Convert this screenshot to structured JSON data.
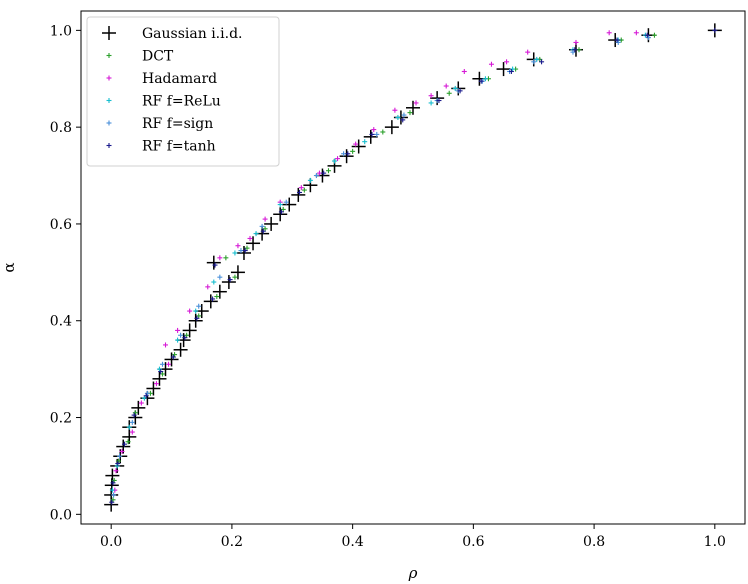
{
  "chart_data": {
    "type": "scatter",
    "title": "",
    "xlabel": "ρ",
    "ylabel": "α",
    "xlim": [
      -0.05,
      1.05
    ],
    "ylim": [
      -0.02,
      1.04
    ],
    "xticks": [
      0.0,
      0.2,
      0.4,
      0.6,
      0.8,
      1.0
    ],
    "yticks": [
      0.0,
      0.2,
      0.4,
      0.6,
      0.8,
      1.0
    ],
    "xtick_labels": [
      "0.0",
      "0.2",
      "0.4",
      "0.6",
      "0.8",
      "1.0"
    ],
    "ytick_labels": [
      "0.0",
      "0.2",
      "0.4",
      "0.6",
      "0.8",
      "1.0"
    ],
    "grid": false,
    "legend_position": "top-left",
    "series": [
      {
        "name": "Gaussian i.i.d.",
        "color": "#000000",
        "marker": "plus",
        "points": [
          [
            0.0,
            0.02
          ],
          [
            0.0,
            0.04
          ],
          [
            0.001,
            0.06
          ],
          [
            0.002,
            0.08
          ],
          [
            0.01,
            0.1
          ],
          [
            0.015,
            0.12
          ],
          [
            0.02,
            0.14
          ],
          [
            0.03,
            0.16
          ],
          [
            0.03,
            0.18
          ],
          [
            0.04,
            0.2
          ],
          [
            0.045,
            0.22
          ],
          [
            0.06,
            0.24
          ],
          [
            0.07,
            0.26
          ],
          [
            0.08,
            0.28
          ],
          [
            0.09,
            0.3
          ],
          [
            0.1,
            0.32
          ],
          [
            0.115,
            0.34
          ],
          [
            0.12,
            0.36
          ],
          [
            0.13,
            0.38
          ],
          [
            0.14,
            0.4
          ],
          [
            0.15,
            0.42
          ],
          [
            0.165,
            0.44
          ],
          [
            0.18,
            0.46
          ],
          [
            0.195,
            0.48
          ],
          [
            0.21,
            0.5
          ],
          [
            0.17,
            0.52
          ],
          [
            0.22,
            0.54
          ],
          [
            0.235,
            0.56
          ],
          [
            0.25,
            0.58
          ],
          [
            0.265,
            0.6
          ],
          [
            0.28,
            0.62
          ],
          [
            0.295,
            0.64
          ],
          [
            0.31,
            0.66
          ],
          [
            0.33,
            0.68
          ],
          [
            0.35,
            0.7
          ],
          [
            0.37,
            0.72
          ],
          [
            0.39,
            0.74
          ],
          [
            0.41,
            0.76
          ],
          [
            0.43,
            0.78
          ],
          [
            0.465,
            0.8
          ],
          [
            0.48,
            0.82
          ],
          [
            0.5,
            0.84
          ],
          [
            0.54,
            0.86
          ],
          [
            0.575,
            0.88
          ],
          [
            0.61,
            0.9
          ],
          [
            0.65,
            0.92
          ],
          [
            0.7,
            0.94
          ],
          [
            0.77,
            0.96
          ],
          [
            0.835,
            0.98
          ],
          [
            0.89,
            0.99
          ],
          [
            1.0,
            1.0
          ]
        ]
      },
      {
        "name": "DCT",
        "color": "#2ca02c",
        "marker": "dot",
        "points": [
          [
            0.003,
            0.03
          ],
          [
            0.005,
            0.07
          ],
          [
            0.012,
            0.11
          ],
          [
            0.028,
            0.15
          ],
          [
            0.04,
            0.21
          ],
          [
            0.065,
            0.25
          ],
          [
            0.085,
            0.29
          ],
          [
            0.105,
            0.33
          ],
          [
            0.125,
            0.37
          ],
          [
            0.145,
            0.41
          ],
          [
            0.175,
            0.45
          ],
          [
            0.205,
            0.49
          ],
          [
            0.19,
            0.53
          ],
          [
            0.225,
            0.55
          ],
          [
            0.255,
            0.59
          ],
          [
            0.285,
            0.63
          ],
          [
            0.32,
            0.67
          ],
          [
            0.36,
            0.71
          ],
          [
            0.4,
            0.75
          ],
          [
            0.45,
            0.79
          ],
          [
            0.495,
            0.83
          ],
          [
            0.56,
            0.87
          ],
          [
            0.625,
            0.9
          ],
          [
            0.67,
            0.92
          ],
          [
            0.71,
            0.94
          ],
          [
            0.775,
            0.96
          ],
          [
            0.845,
            0.98
          ],
          [
            0.9,
            0.99
          ]
        ]
      },
      {
        "name": "Hadamard",
        "color": "#d61ad6",
        "marker": "dot",
        "points": [
          [
            0.006,
            0.05
          ],
          [
            0.008,
            0.09
          ],
          [
            0.018,
            0.13
          ],
          [
            0.035,
            0.17
          ],
          [
            0.05,
            0.23
          ],
          [
            0.075,
            0.27
          ],
          [
            0.095,
            0.31
          ],
          [
            0.09,
            0.35
          ],
          [
            0.11,
            0.38
          ],
          [
            0.13,
            0.42
          ],
          [
            0.16,
            0.47
          ],
          [
            0.18,
            0.53
          ],
          [
            0.21,
            0.555
          ],
          [
            0.23,
            0.57
          ],
          [
            0.255,
            0.61
          ],
          [
            0.28,
            0.645
          ],
          [
            0.315,
            0.675
          ],
          [
            0.345,
            0.705
          ],
          [
            0.375,
            0.735
          ],
          [
            0.405,
            0.765
          ],
          [
            0.435,
            0.795
          ],
          [
            0.47,
            0.835
          ],
          [
            0.505,
            0.85
          ],
          [
            0.53,
            0.865
          ],
          [
            0.555,
            0.885
          ],
          [
            0.585,
            0.915
          ],
          [
            0.63,
            0.93
          ],
          [
            0.655,
            0.935
          ],
          [
            0.69,
            0.955
          ],
          [
            0.77,
            0.975
          ],
          [
            0.825,
            0.995
          ],
          [
            0.87,
            0.995
          ]
        ]
      },
      {
        "name": "RF f=ReLu",
        "color": "#17becf",
        "marker": "dot",
        "points": [
          [
            0.002,
            0.05
          ],
          [
            0.01,
            0.1
          ],
          [
            0.03,
            0.18
          ],
          [
            0.055,
            0.24
          ],
          [
            0.08,
            0.3
          ],
          [
            0.11,
            0.36
          ],
          [
            0.14,
            0.42
          ],
          [
            0.17,
            0.48
          ],
          [
            0.205,
            0.54
          ],
          [
            0.24,
            0.58
          ],
          [
            0.28,
            0.64
          ],
          [
            0.33,
            0.69
          ],
          [
            0.37,
            0.73
          ],
          [
            0.42,
            0.77
          ],
          [
            0.475,
            0.82
          ],
          [
            0.53,
            0.85
          ],
          [
            0.57,
            0.88
          ],
          [
            0.62,
            0.9
          ],
          [
            0.665,
            0.92
          ],
          [
            0.705,
            0.94
          ],
          [
            0.765,
            0.96
          ],
          [
            0.84,
            0.98
          ],
          [
            0.885,
            0.99
          ]
        ]
      },
      {
        "name": "RF f=sign",
        "color": "#4a90d9",
        "marker": "dot",
        "points": [
          [
            0.004,
            0.04
          ],
          [
            0.014,
            0.12
          ],
          [
            0.035,
            0.19
          ],
          [
            0.06,
            0.25
          ],
          [
            0.085,
            0.31
          ],
          [
            0.115,
            0.37
          ],
          [
            0.145,
            0.43
          ],
          [
            0.18,
            0.49
          ],
          [
            0.215,
            0.545
          ],
          [
            0.25,
            0.595
          ],
          [
            0.29,
            0.645
          ],
          [
            0.34,
            0.7
          ],
          [
            0.385,
            0.745
          ],
          [
            0.44,
            0.785
          ],
          [
            0.485,
            0.825
          ],
          [
            0.54,
            0.855
          ],
          [
            0.575,
            0.875
          ],
          [
            0.615,
            0.895
          ],
          [
            0.66,
            0.915
          ],
          [
            0.7,
            0.935
          ],
          [
            0.765,
            0.955
          ],
          [
            0.84,
            0.975
          ],
          [
            0.89,
            0.985
          ]
        ]
      },
      {
        "name": "RF f=tanh",
        "color": "#1a1a8c",
        "marker": "dot",
        "points": [
          [
            0.001,
            0.025
          ],
          [
            0.003,
            0.065
          ],
          [
            0.011,
            0.105
          ],
          [
            0.022,
            0.145
          ],
          [
            0.038,
            0.205
          ],
          [
            0.058,
            0.245
          ],
          [
            0.082,
            0.295
          ],
          [
            0.103,
            0.325
          ],
          [
            0.122,
            0.365
          ],
          [
            0.142,
            0.405
          ],
          [
            0.168,
            0.445
          ],
          [
            0.197,
            0.485
          ],
          [
            0.172,
            0.515
          ],
          [
            0.222,
            0.545
          ],
          [
            0.252,
            0.585
          ],
          [
            0.282,
            0.625
          ],
          [
            0.312,
            0.665
          ],
          [
            0.352,
            0.705
          ],
          [
            0.392,
            0.745
          ],
          [
            0.432,
            0.785
          ],
          [
            0.483,
            0.815
          ],
          [
            0.543,
            0.855
          ],
          [
            0.578,
            0.875
          ],
          [
            0.613,
            0.895
          ],
          [
            0.663,
            0.915
          ],
          [
            0.713,
            0.935
          ],
          [
            0.768,
            0.96
          ],
          [
            0.838,
            0.98
          ],
          [
            0.888,
            0.99
          ],
          [
            1.0,
            1.0
          ]
        ]
      }
    ]
  }
}
